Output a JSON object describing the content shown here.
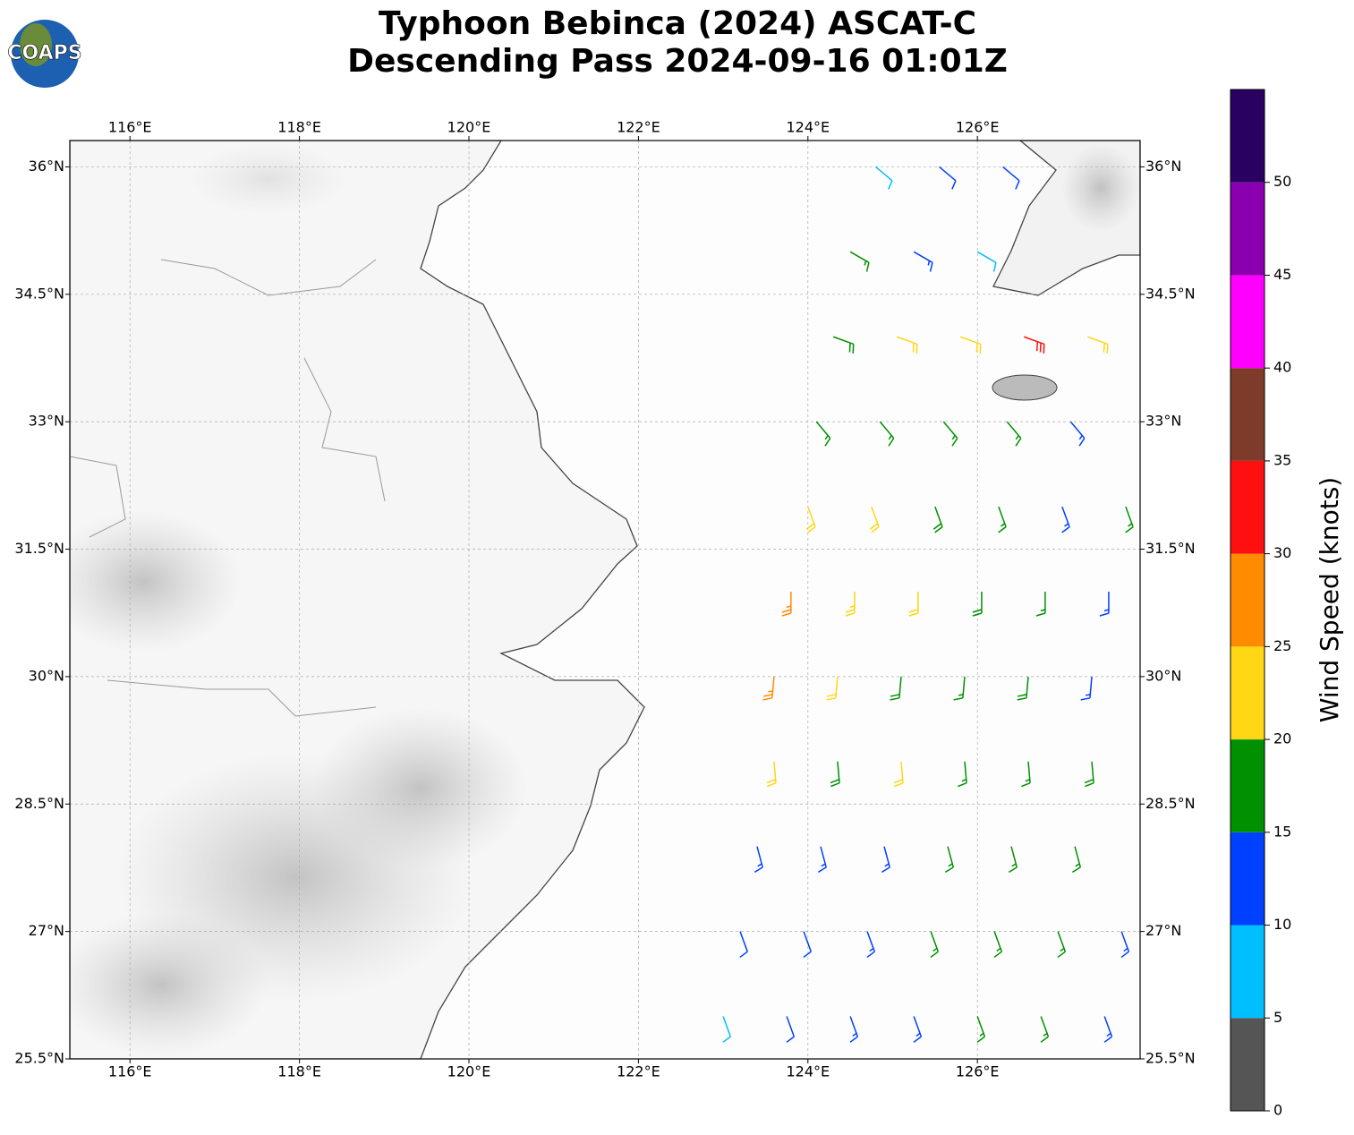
{
  "header": {
    "logo": "COAPS",
    "title": [
      "Typhoon Bebinca (2024) ASCAT-C",
      "Descending Pass 2024-09-16 01:01Z"
    ]
  },
  "map": {
    "lonlim": [
      115.29,
      127.92
    ],
    "latlim": [
      25.5,
      36.31
    ],
    "grid": true,
    "lon_ticks": [
      {
        "value": 116,
        "label": "116°E"
      },
      {
        "value": 118,
        "label": "118°E"
      },
      {
        "value": 120,
        "label": "120°E"
      },
      {
        "value": 122,
        "label": "122°E"
      },
      {
        "value": 124,
        "label": "124°E"
      },
      {
        "value": 126,
        "label": "126°E"
      }
    ],
    "lat_ticks": [
      {
        "value": 25.5,
        "label": "25.5°N"
      },
      {
        "value": 27,
        "label": "27°N"
      },
      {
        "value": 28.5,
        "label": "28.5°N"
      },
      {
        "value": 30,
        "label": "30°N"
      },
      {
        "value": 31.5,
        "label": "31.5°N"
      },
      {
        "value": 33,
        "label": "33°N"
      },
      {
        "value": 34.5,
        "label": "34.5°N"
      },
      {
        "value": 36,
        "label": "36°N"
      }
    ],
    "barbs": [
      [
        123.0,
        26,
        8,
        160
      ],
      [
        123.75,
        26,
        12,
        160
      ],
      [
        124.5,
        26,
        13,
        160
      ],
      [
        125.25,
        26,
        14,
        160
      ],
      [
        126,
        26,
        16,
        160
      ],
      [
        126.75,
        26,
        17,
        160
      ],
      [
        127.5,
        26,
        14,
        160
      ],
      [
        123.2,
        27,
        12,
        160
      ],
      [
        123.95,
        27,
        12,
        160
      ],
      [
        124.7,
        27,
        13,
        160
      ],
      [
        125.45,
        27,
        15,
        160
      ],
      [
        126.2,
        27,
        17,
        160
      ],
      [
        126.95,
        27,
        16,
        160
      ],
      [
        127.7,
        27,
        13,
        160
      ],
      [
        123.4,
        28,
        13,
        165
      ],
      [
        124.15,
        28,
        13,
        165
      ],
      [
        124.9,
        28,
        14,
        165
      ],
      [
        125.65,
        28,
        16,
        165
      ],
      [
        126.4,
        28,
        17,
        165
      ],
      [
        127.15,
        28,
        17,
        165
      ],
      [
        123.6,
        29,
        22,
        175
      ],
      [
        124.35,
        29,
        18,
        175
      ],
      [
        125.1,
        29,
        22,
        175
      ],
      [
        125.85,
        29,
        17,
        175
      ],
      [
        126.6,
        29,
        17,
        175
      ],
      [
        127.35,
        29,
        18,
        175
      ],
      [
        123.6,
        30,
        27,
        185
      ],
      [
        124.35,
        30,
        22,
        185
      ],
      [
        125.1,
        30,
        18,
        185
      ],
      [
        125.85,
        30,
        17,
        185
      ],
      [
        126.6,
        30,
        18,
        185
      ],
      [
        127.35,
        30,
        13,
        185
      ],
      [
        123.8,
        31,
        27,
        180
      ],
      [
        124.55,
        31,
        23,
        180
      ],
      [
        125.3,
        31,
        22,
        180
      ],
      [
        126.05,
        31,
        18,
        180
      ],
      [
        126.8,
        31,
        17,
        180
      ],
      [
        127.55,
        31,
        13,
        180
      ],
      [
        124.0,
        32,
        22,
        160
      ],
      [
        124.75,
        32,
        22,
        160
      ],
      [
        125.5,
        32,
        18,
        160
      ],
      [
        126.25,
        32,
        17,
        160
      ],
      [
        127.0,
        32,
        13,
        160
      ],
      [
        127.75,
        32,
        17,
        160
      ],
      [
        124.1,
        33,
        17,
        140
      ],
      [
        124.85,
        33,
        17,
        140
      ],
      [
        125.6,
        33,
        17,
        140
      ],
      [
        126.35,
        33,
        16,
        140
      ],
      [
        127.1,
        33,
        13,
        140
      ],
      [
        124.3,
        34,
        18,
        110
      ],
      [
        125.05,
        34,
        22,
        110
      ],
      [
        125.8,
        34,
        22,
        110
      ],
      [
        126.55,
        34,
        31,
        110
      ],
      [
        127.3,
        34,
        22,
        110
      ],
      [
        124.5,
        35,
        17,
        120
      ],
      [
        125.25,
        35,
        13,
        120
      ],
      [
        126.0,
        35,
        8,
        120
      ],
      [
        124.8,
        36,
        8,
        130
      ],
      [
        125.55,
        36,
        12,
        130
      ],
      [
        126.3,
        36,
        12,
        130
      ]
    ]
  },
  "colorbar": {
    "label": "Wind Speed (knots)",
    "lim": [
      0,
      55
    ],
    "ticks": [
      0,
      5,
      10,
      15,
      20,
      25,
      30,
      35,
      40,
      45,
      50
    ],
    "colors": [
      "#555555",
      "#00bfff",
      "#0040ff",
      "#009000",
      "#ffd714",
      "#ff8c00",
      "#ff1010",
      "#7f3b2a",
      "#ff00ff",
      "#8a00b0",
      "#2a0060"
    ]
  }
}
